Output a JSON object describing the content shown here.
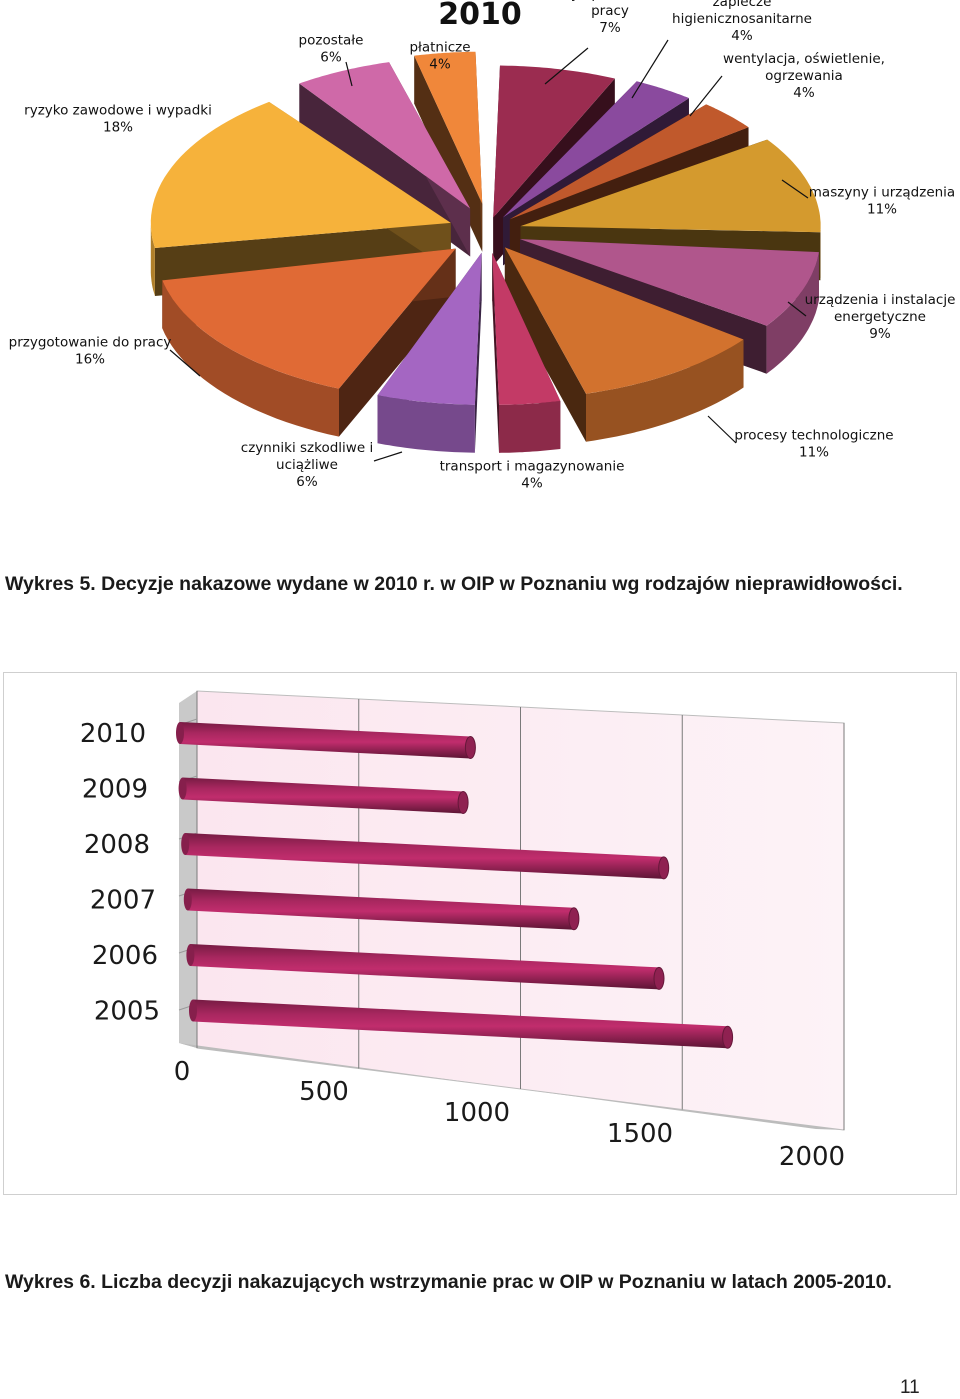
{
  "chart_data": [
    {
      "type": "pie",
      "title": "2010",
      "slices": [
        {
          "label": [
            "obiekty i pomieszczenia",
            "pracy"
          ],
          "value": 7,
          "value_label": "7%",
          "color": "#9b2c50"
        },
        {
          "label": [
            "zaplecze",
            "higienicznosanitarne"
          ],
          "value": 4,
          "value_label": "4%",
          "color": "#8a4a9e"
        },
        {
          "label": [
            "wentylacja, oświetlenie,",
            "ogrzewania"
          ],
          "value": 4,
          "value_label": "4%",
          "color": "#c0592c"
        },
        {
          "label": [
            "maszyny i urządzenia"
          ],
          "value": 11,
          "value_label": "11%",
          "color": "#d49a2e"
        },
        {
          "label": [
            "urządzenia i instalacje",
            "energetyczne"
          ],
          "value": 9,
          "value_label": "9%",
          "color": "#b0568c"
        },
        {
          "label": [
            "procesy technologiczne"
          ],
          "value": 11,
          "value_label": "11%",
          "color": "#d2722e"
        },
        {
          "label": [
            "transport i magazynowanie"
          ],
          "value": 4,
          "value_label": "4%",
          "color": "#c33a66"
        },
        {
          "label": [
            "czynniki szkodliwe i",
            "uciążliwe"
          ],
          "value": 6,
          "value_label": "6%",
          "color": "#a466c2"
        },
        {
          "label": [
            "przygotowanie do pracy"
          ],
          "value": 16,
          "value_label": "16%",
          "color": "#e06a35"
        },
        {
          "label": [
            "ryzyko zawodowe i wypadki"
          ],
          "value": 18,
          "value_label": "18%",
          "color": "#f6b23b"
        },
        {
          "label": [
            "pozostałe"
          ],
          "value": 6,
          "value_label": "6%",
          "color": "#cf69a8"
        },
        {
          "label": [
            "płatnicze"
          ],
          "value": 4,
          "value_label": "4%",
          "color": "#f0873a"
        }
      ]
    },
    {
      "type": "bar",
      "orientation": "horizontal",
      "categories": [
        "2010",
        "2009",
        "2008",
        "2007",
        "2006",
        "2005"
      ],
      "values": [
        880,
        850,
        1450,
        1170,
        1420,
        1620
      ],
      "xlim": [
        0,
        2000
      ],
      "xticks": [
        "0",
        "500",
        "1000",
        "1500",
        "2000"
      ],
      "bar_color": "#a8275f",
      "grid": true
    }
  ],
  "captions": {
    "fig5": "Wykres 5. Decyzje nakazowe wydane w 2010 r. w OIP w Poznaniu wg rodzajów nieprawidłowości.",
    "fig6": "Wykres 6. Liczba decyzji nakazujących wstrzymanie prac w OIP w Poznaniu w latach 2005-2010."
  },
  "page_number": "11"
}
